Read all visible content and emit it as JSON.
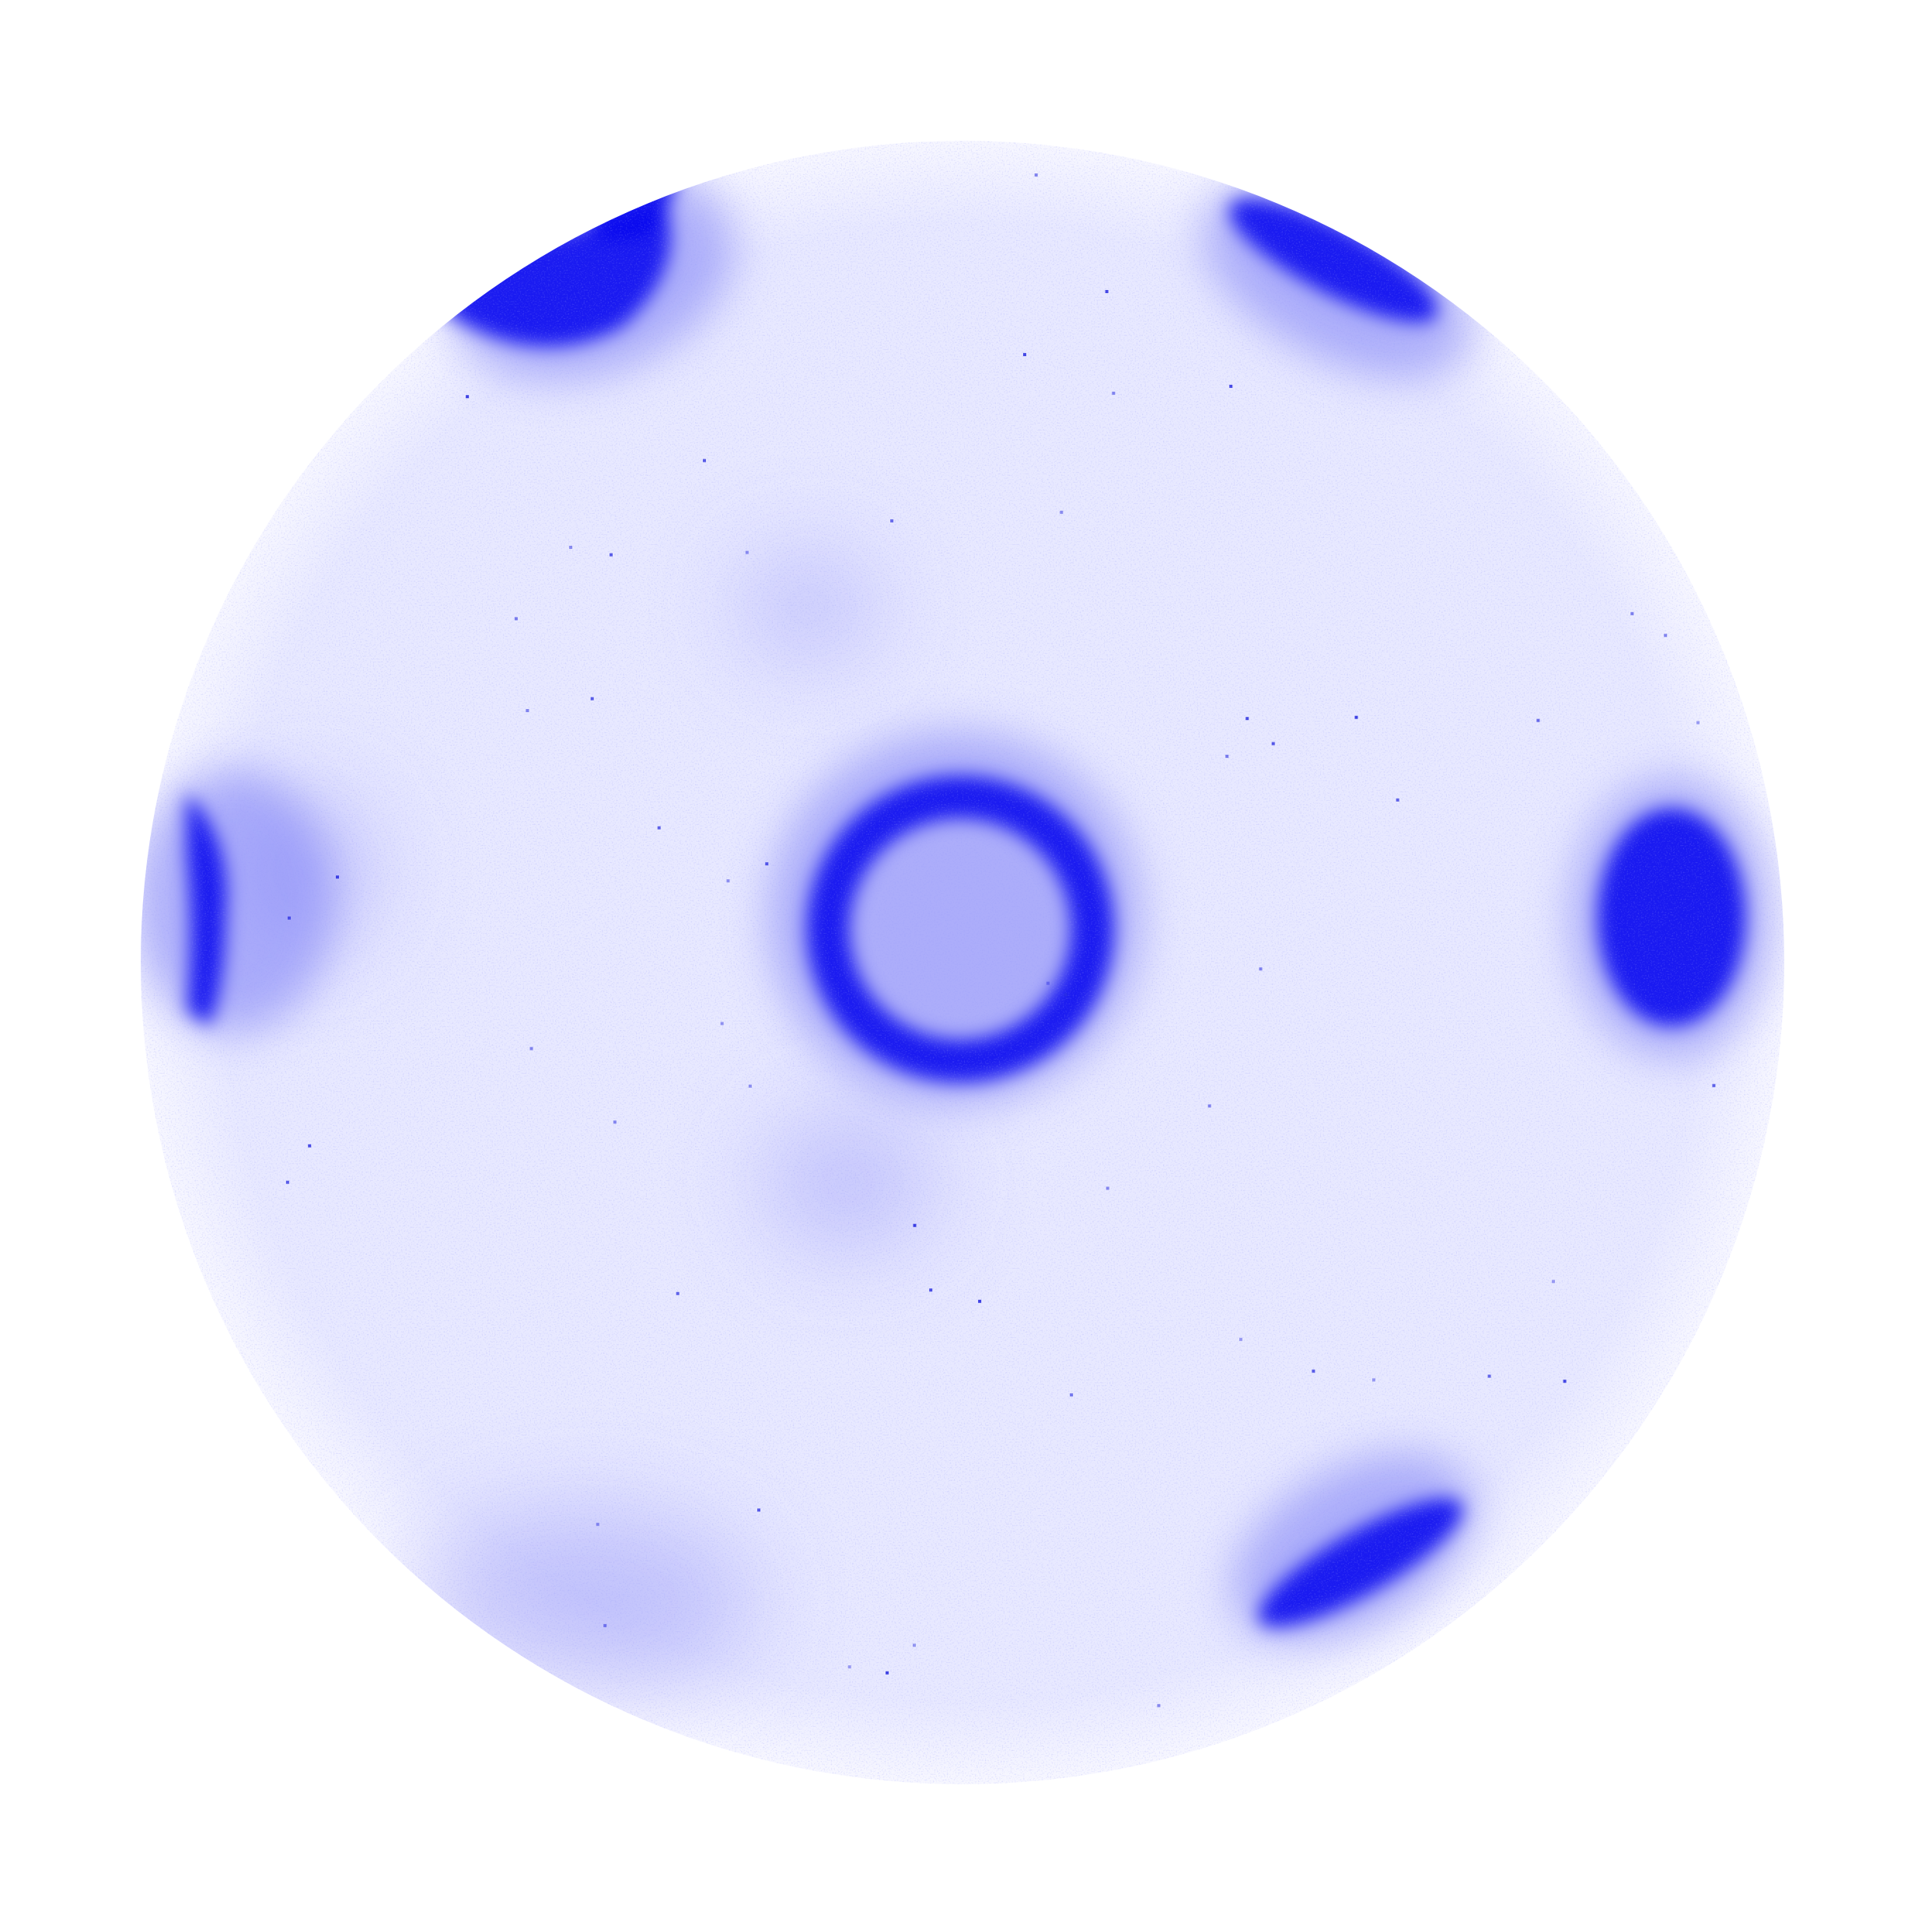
{
  "figure": {
    "kind": "diffraction-pattern",
    "colors": {
      "background": "#ffffff",
      "disc_base": "#e8e9ff",
      "disc_edge": "#f7f7ff",
      "spot": "#0000ee",
      "halo": "#7a7cf5",
      "speckle": "#2a2ee0"
    },
    "spots": [
      {
        "name": "central-ring",
        "shape": "ring",
        "intensity": 0.95
      },
      {
        "name": "top-left",
        "shape": "crescent",
        "intensity": 0.9
      },
      {
        "name": "top-right",
        "shape": "streak",
        "intensity": 0.95
      },
      {
        "name": "left",
        "shape": "arc",
        "intensity": 0.95
      },
      {
        "name": "right",
        "shape": "blob",
        "intensity": 0.85
      },
      {
        "name": "bottom-right",
        "shape": "streak",
        "intensity": 0.95
      },
      {
        "name": "bottom-left",
        "shape": "diffuse",
        "intensity": 0.35
      }
    ]
  }
}
